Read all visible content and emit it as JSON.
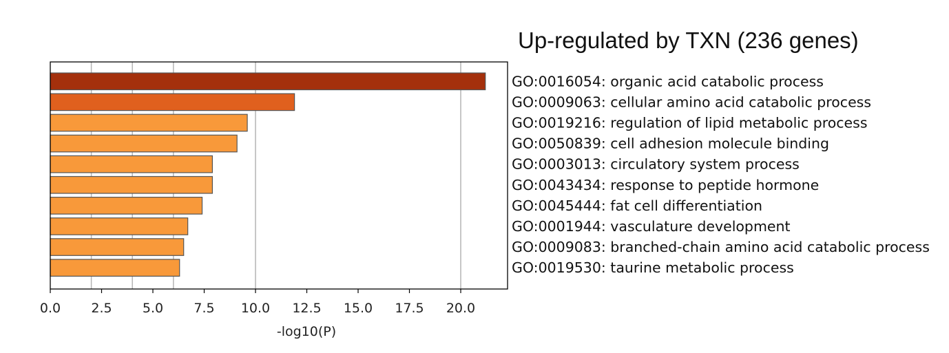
{
  "chart_data": {
    "type": "bar",
    "orientation": "horizontal",
    "title": "Up-regulated by TXN (236 genes)",
    "xlabel": "-log10(P)",
    "ylabel": "",
    "xlim": [
      0,
      22
    ],
    "xticks": [
      "0.0",
      "2.5",
      "5.0",
      "7.5",
      "10.0",
      "12.5",
      "15.0",
      "17.5",
      "20.0"
    ],
    "grid": "vertical",
    "gridlines": [
      2,
      4,
      6,
      10,
      20
    ],
    "categories": [
      "GO:0016054: organic acid catabolic process",
      "GO:0009063: cellular amino acid catabolic process",
      "GO:0019216: regulation of lipid metabolic process",
      "GO:0050839: cell adhesion molecule binding",
      "GO:0003013: circulatory system process",
      "GO:0043434: response to peptide hormone",
      "GO:0045444: fat cell differentiation",
      "GO:0001944: vasculature development",
      "GO:0009083: branched-chain amino acid catabolic process",
      "GO:0019530: taurine metabolic process"
    ],
    "values": [
      21.2,
      11.9,
      9.6,
      9.1,
      7.9,
      7.9,
      7.4,
      6.7,
      6.5,
      6.3
    ],
    "colors": [
      "#a4300c",
      "#e0601e",
      "#f8993a",
      "#f8993a",
      "#f8993a",
      "#f8993a",
      "#f8993a",
      "#f8993a",
      "#f8993a",
      "#f8993a"
    ],
    "bar_edge_color": "#555555",
    "label_position": "right"
  }
}
